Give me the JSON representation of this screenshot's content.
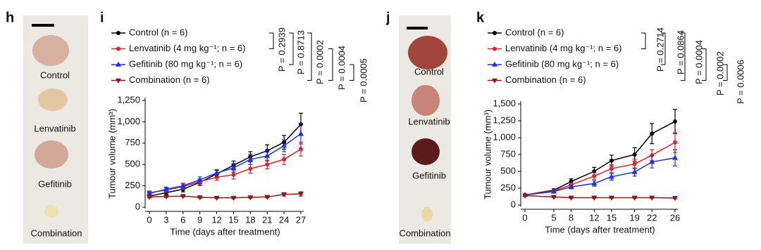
{
  "chart_data": [
    {
      "type": "line",
      "panel": "i",
      "x_label": "Time (days after treatment)",
      "y_label": "Tumour volume (mm³)",
      "x": [
        0,
        3,
        6,
        9,
        12,
        15,
        18,
        21,
        24,
        27
      ],
      "xlim": [
        0,
        27
      ],
      "xticks": [
        0,
        3,
        6,
        9,
        12,
        15,
        18,
        21,
        24,
        27
      ],
      "ylim": [
        0,
        1250
      ],
      "yticks": [
        0,
        250,
        500,
        750,
        {
          "value": 1000,
          "label": "1,000"
        },
        {
          "value": 1250,
          "label": "1,250"
        }
      ],
      "series": [
        {
          "name": "Control (n = 6)",
          "color": "#000000",
          "marker": "circle",
          "values": [
            130,
            170,
            210,
            290,
            390,
            490,
            590,
            660,
            760,
            970
          ],
          "errors": [
            20,
            25,
            30,
            35,
            40,
            50,
            60,
            70,
            80,
            130
          ]
        },
        {
          "name": "Lenvatinib (4 mg kg⁻¹; n = 6)",
          "color": "#e8202a",
          "marker": "circle",
          "values": [
            170,
            200,
            240,
            300,
            350,
            380,
            450,
            500,
            560,
            680
          ],
          "errors": [
            20,
            25,
            30,
            30,
            35,
            50,
            50,
            50,
            60,
            80
          ]
        },
        {
          "name": "Gefitinib (80 mg kg⁻¹; n = 6)",
          "color": "#1f2ee8",
          "marker": "triangle-up",
          "values": [
            160,
            210,
            250,
            320,
            400,
            460,
            560,
            600,
            720,
            860
          ],
          "errors": [
            20,
            25,
            30,
            35,
            40,
            50,
            60,
            60,
            70,
            120
          ]
        },
        {
          "name": "Combination (n = 6)",
          "color": "#8b1a1a",
          "marker": "triangle-down",
          "values": [
            120,
            125,
            130,
            115,
            110,
            110,
            115,
            120,
            150,
            155
          ],
          "errors": [
            10,
            10,
            10,
            10,
            10,
            10,
            10,
            10,
            20,
            25
          ]
        }
      ],
      "annotations": [
        "P = 0.2939",
        "P = 0.8713",
        "P = 0.0002",
        "P = 0.0004",
        "P = 0.0005"
      ]
    },
    {
      "type": "line",
      "panel": "k",
      "x_label": "Time (days after treatment)",
      "y_label": "Tumour volume (mm³)",
      "x": [
        0,
        5,
        8,
        12,
        15,
        19,
        22,
        26
      ],
      "xlim": [
        0,
        26
      ],
      "xticks": [
        0,
        5,
        8,
        12,
        15,
        19,
        22,
        26
      ],
      "ylim": [
        0,
        1500
      ],
      "yticks": [
        0,
        250,
        500,
        750,
        {
          "value": 1000,
          "label": "1,000"
        },
        {
          "value": 1250,
          "label": "1,250"
        },
        {
          "value": 1500,
          "label": "1,500"
        }
      ],
      "series": [
        {
          "name": "Control (n = 6)",
          "color": "#000000",
          "marker": "circle",
          "values": [
            150,
            220,
            350,
            500,
            660,
            750,
            1060,
            1240
          ],
          "errors": [
            10,
            20,
            40,
            60,
            80,
            100,
            150,
            180
          ]
        },
        {
          "name": "Lenvatinib (4 mg kg⁻¹; n = 6)",
          "color": "#e8202a",
          "marker": "circle",
          "values": [
            150,
            210,
            300,
            430,
            540,
            610,
            740,
            930
          ],
          "errors": [
            10,
            20,
            30,
            50,
            60,
            70,
            80,
            150
          ]
        },
        {
          "name": "Gefitinib (80 mg kg⁻¹; n = 6)",
          "color": "#1f2ee8",
          "marker": "triangle-up",
          "values": [
            150,
            200,
            270,
            320,
            420,
            490,
            640,
            700
          ],
          "errors": [
            10,
            20,
            30,
            40,
            50,
            60,
            90,
            120
          ]
        },
        {
          "name": "Combination (n = 6)",
          "color": "#8b1a1a",
          "marker": "triangle-down",
          "values": [
            140,
            120,
            110,
            110,
            110,
            110,
            110,
            105
          ],
          "errors": [
            10,
            10,
            10,
            10,
            10,
            10,
            10,
            10
          ]
        }
      ],
      "annotations": [
        "P = 0.2714",
        "P = 0.0864",
        "P = 0.0004",
        "P = 0.0002",
        "P = 0.0006"
      ]
    }
  ],
  "photos": [
    {
      "label": "h",
      "items": [
        "Control",
        "Lenvatinib",
        "Gefitinib",
        "Combination"
      ]
    },
    {
      "label": "j",
      "items": [
        "Control",
        "Lenvatinib",
        "Gefitinib",
        "Combination"
      ]
    }
  ]
}
